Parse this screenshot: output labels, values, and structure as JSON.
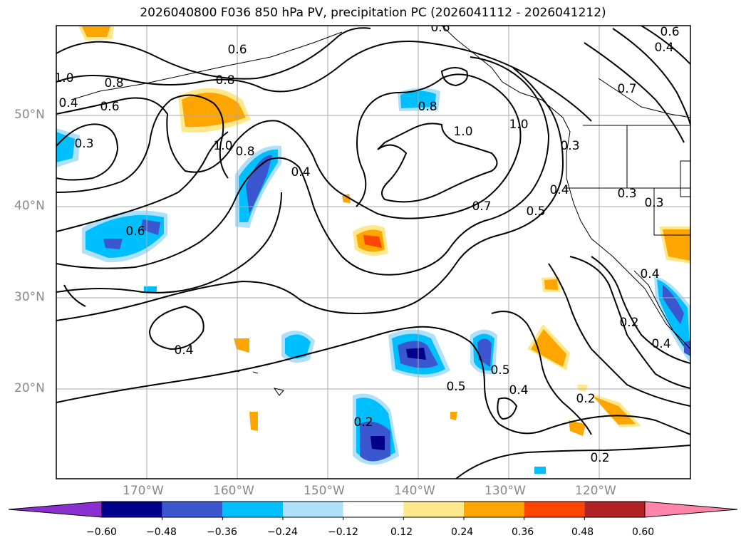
{
  "title": "2026040800 F036 850 hPa PV, precipitation PC (2026041112 - 2026041212)",
  "lat_labels": [
    "50°N",
    "40°N",
    "30°N",
    "20°N"
  ],
  "lon_labels": [
    "170°W",
    "160°W",
    "150°W",
    "140°W",
    "130°W",
    "120°W"
  ],
  "colorbar": {
    "labels": [
      "−0.60",
      "−0.48",
      "−0.36",
      "−0.24",
      "−0.12",
      "0.12",
      "0.24",
      "0.36",
      "0.48",
      "0.60"
    ],
    "colors": [
      "#8a2fd0",
      "#00008b",
      "#3a57cf",
      "#00bfff",
      "#aee0fa",
      "#ffffff",
      "#ffe88c",
      "#ffa500",
      "#ff4500",
      "#b22222",
      "#ff85a8"
    ]
  },
  "contour_labels": [
    "0.6",
    "0.8",
    "0.8",
    "1.0",
    "0.6",
    "0.3",
    "1.0",
    "0.8",
    "0.4",
    "0.6",
    "0.4",
    "0.7",
    "1.0",
    "0.8",
    "1.0",
    "0.7",
    "0.5",
    "0.4",
    "0.3",
    "0.3",
    "0.4",
    "0.6",
    "0.2",
    "0.4",
    "0.5",
    "0.4",
    "0.2",
    "0.2",
    "0.4",
    "0.6",
    "0.4",
    "0.3",
    "0.2",
    "0.5"
  ]
}
